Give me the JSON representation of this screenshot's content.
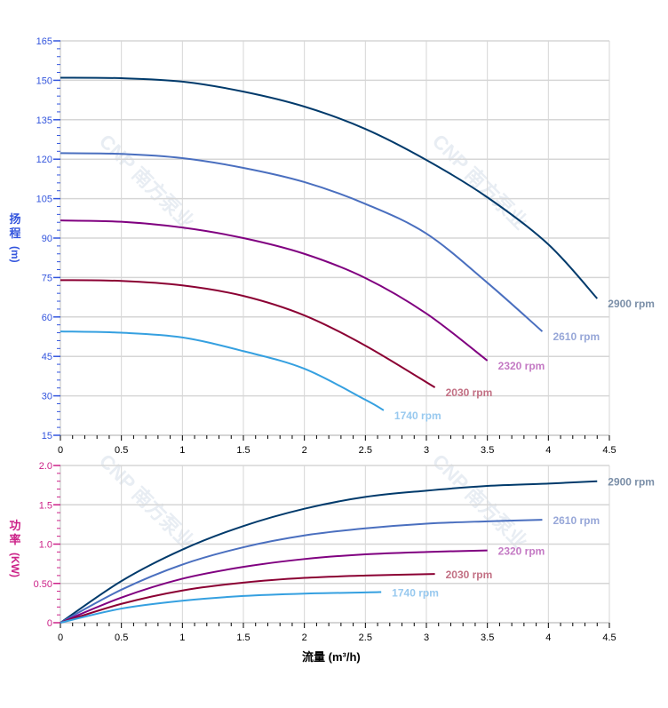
{
  "watermark": "CNP 南方泵业",
  "chart_data": [
    {
      "type": "line",
      "ylabel_chars": [
        "扬",
        "程"
      ],
      "ylabel_unit": "(m)",
      "ylabel_color": "#3355dd",
      "xlim": [
        0,
        4.5
      ],
      "ylim": [
        15,
        165
      ],
      "xticks": [
        "0",
        "0.5",
        "1",
        "1.5",
        "2",
        "2.5",
        "3",
        "3.5",
        "4",
        "4.5"
      ],
      "yticks": [
        "15",
        "30",
        "45",
        "60",
        "75",
        "90",
        "105",
        "120",
        "135",
        "150",
        "165"
      ],
      "grid": true,
      "series": [
        {
          "name": "2900 rpm",
          "color": "#003a6b",
          "label_color": "#7b8fa8",
          "x": [
            0,
            0.5,
            1,
            1.5,
            2,
            2.5,
            3,
            3.5,
            4,
            4.4
          ],
          "y": [
            151,
            150.8,
            149.5,
            145.7,
            140,
            131.5,
            119.7,
            105.5,
            87.6,
            67
          ]
        },
        {
          "name": "2610 rpm",
          "color": "#4a6fbf",
          "label_color": "#97a7d8",
          "x": [
            0,
            0.5,
            1,
            1.5,
            2,
            2.5,
            3,
            3.5,
            3.95
          ],
          "y": [
            122.3,
            122,
            120.4,
            116.7,
            111.3,
            103,
            91.7,
            73,
            54.5
          ]
        },
        {
          "name": "2320 rpm",
          "color": "#800080",
          "label_color": "#c47ac4",
          "x": [
            0,
            0.5,
            1,
            1.5,
            2,
            2.5,
            3,
            3.5
          ],
          "y": [
            96.7,
            96.2,
            94,
            90,
            84,
            74.8,
            61.3,
            43.4
          ]
        },
        {
          "name": "2030 rpm",
          "color": "#8b0033",
          "label_color": "#c27084",
          "x": [
            0,
            0.5,
            1,
            1.5,
            2,
            2.5,
            3.07
          ],
          "y": [
            74,
            73.7,
            72,
            68,
            60.6,
            49.1,
            33.2
          ]
        },
        {
          "name": "1740 rpm",
          "color": "#35a0e0",
          "label_color": "#98c9ef",
          "x": [
            0,
            0.5,
            1,
            1.5,
            2,
            2.5,
            2.65
          ],
          "y": [
            54.5,
            54,
            52.2,
            47,
            40.3,
            28.5,
            24.5
          ]
        }
      ]
    },
    {
      "type": "line",
      "ylabel_chars": [
        "功",
        "率"
      ],
      "ylabel_unit": "(KW)",
      "ylabel_color": "#cc2288",
      "xlabel": "流量 (m³/h)",
      "xlim": [
        0,
        4.5
      ],
      "ylim": [
        0,
        2.0
      ],
      "xticks": [
        "0",
        "0.5",
        "1",
        "1.5",
        "2",
        "2.5",
        "3",
        "3.5",
        "4",
        "4.5"
      ],
      "yticks": [
        "0",
        "0.50",
        "1.0",
        "1.5",
        "2.0"
      ],
      "grid": true,
      "series": [
        {
          "name": "2900 rpm",
          "color": "#003a6b",
          "label_color": "#7b8fa8",
          "x": [
            0,
            0.5,
            1,
            1.5,
            2,
            2.5,
            3,
            3.5,
            4,
            4.4
          ],
          "y": [
            0,
            0.53,
            0.93,
            1.23,
            1.45,
            1.6,
            1.68,
            1.74,
            1.77,
            1.8
          ]
        },
        {
          "name": "2610 rpm",
          "color": "#4a6fbf",
          "label_color": "#97a7d8",
          "x": [
            0,
            0.5,
            1,
            1.5,
            2,
            2.5,
            3,
            3.5,
            3.95
          ],
          "y": [
            0,
            0.42,
            0.74,
            0.96,
            1.11,
            1.2,
            1.26,
            1.29,
            1.31
          ]
        },
        {
          "name": "2320 rpm",
          "color": "#800080",
          "label_color": "#c47ac4",
          "x": [
            0,
            0.5,
            1,
            1.5,
            2,
            2.5,
            3,
            3.5
          ],
          "y": [
            0,
            0.32,
            0.56,
            0.71,
            0.81,
            0.87,
            0.9,
            0.92
          ]
        },
        {
          "name": "2030 rpm",
          "color": "#8b0033",
          "label_color": "#c27084",
          "x": [
            0,
            0.5,
            1,
            1.5,
            2,
            2.5,
            3.07
          ],
          "y": [
            0,
            0.24,
            0.41,
            0.51,
            0.57,
            0.6,
            0.62
          ]
        },
        {
          "name": "1740 rpm",
          "color": "#35a0e0",
          "label_color": "#98c9ef",
          "x": [
            0,
            0.5,
            1,
            1.5,
            2,
            2.5,
            2.63
          ],
          "y": [
            0,
            0.18,
            0.28,
            0.34,
            0.37,
            0.385,
            0.39
          ]
        }
      ]
    }
  ]
}
